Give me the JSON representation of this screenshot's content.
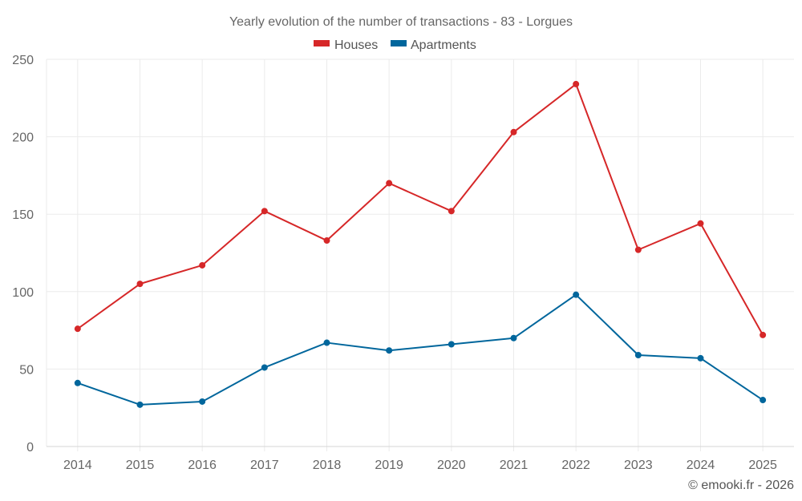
{
  "chart_data": {
    "type": "line",
    "title": "Yearly evolution of the number of transactions - 83 - Lorgues",
    "xlabel": "",
    "ylabel": "",
    "categories": [
      "2014",
      "2015",
      "2016",
      "2017",
      "2018",
      "2019",
      "2020",
      "2021",
      "2022",
      "2023",
      "2024",
      "2025"
    ],
    "ylim": [
      0,
      250
    ],
    "yticks": [
      0,
      50,
      100,
      150,
      200,
      250
    ],
    "grid": true,
    "legend_position": "top-center",
    "series": [
      {
        "name": "Houses",
        "color": "#d62728",
        "values": [
          76,
          105,
          117,
          152,
          133,
          170,
          152,
          203,
          234,
          127,
          144,
          72
        ]
      },
      {
        "name": "Apartments",
        "color": "#00669c",
        "values": [
          41,
          27,
          29,
          51,
          67,
          62,
          66,
          70,
          98,
          59,
          57,
          30
        ]
      }
    ],
    "credit": "© emooki.fr - 2026"
  }
}
